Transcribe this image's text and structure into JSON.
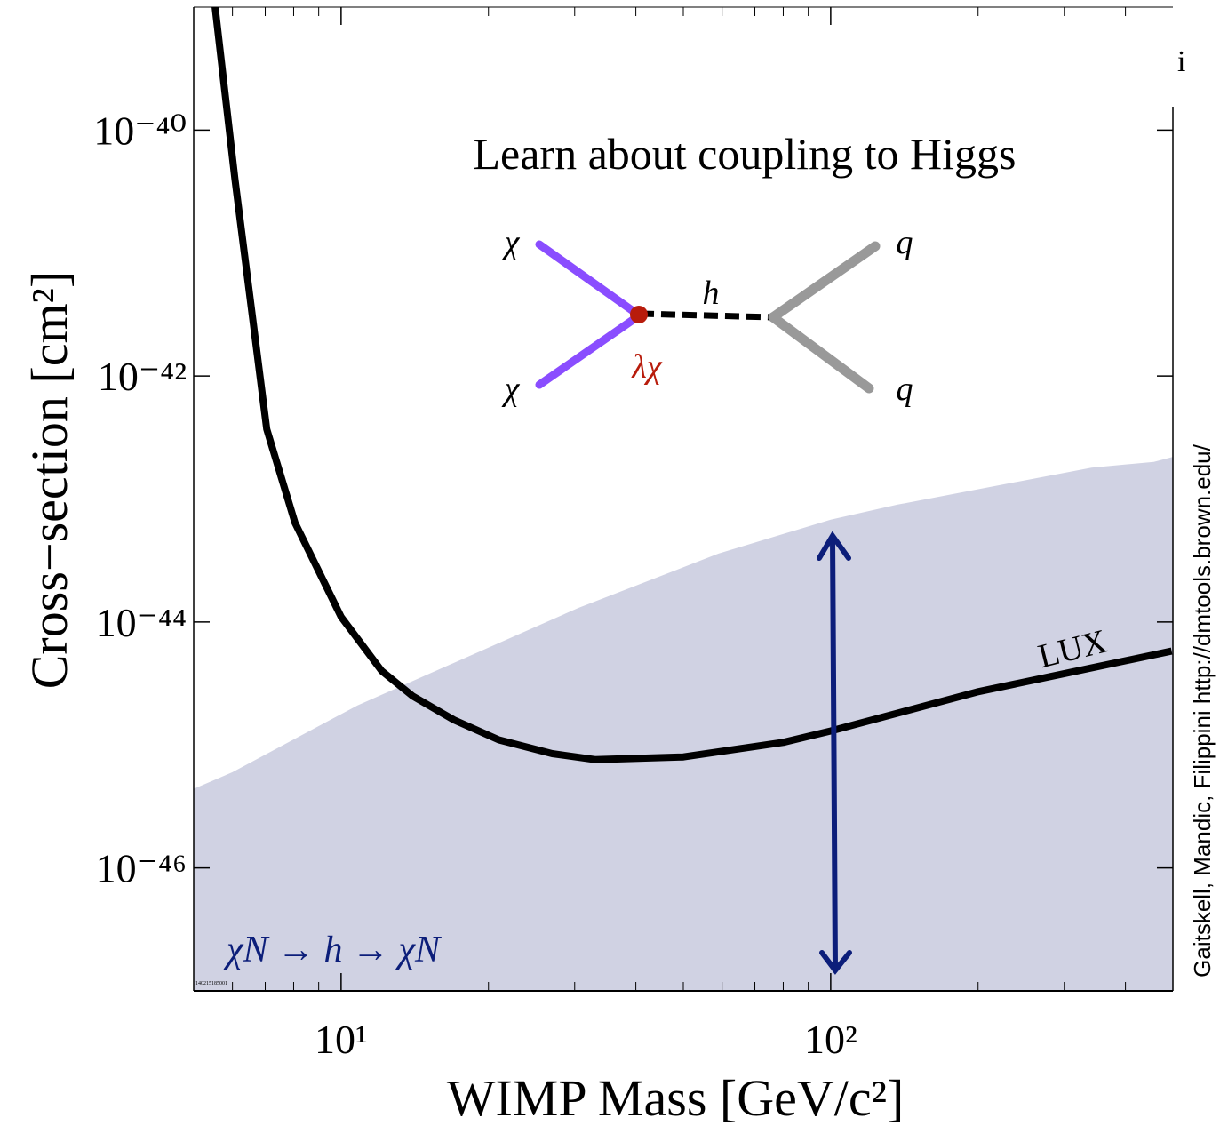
{
  "chart_data": {
    "type": "line",
    "xlabel": "WIMP Mass [GeV/c²]",
    "ylabel": "Cross−section [cm²]",
    "xscale": "log",
    "yscale": "log",
    "xlim": [
      5,
      500
    ],
    "ylim": [
      1e-47,
      1e-39
    ],
    "xticks": [
      {
        "value": 10,
        "label": "10¹"
      },
      {
        "value": 100,
        "label": "10²"
      }
    ],
    "xticks_minor": [
      6,
      7,
      8,
      9,
      20,
      30,
      40,
      50,
      60,
      70,
      80,
      90,
      200,
      300,
      400
    ],
    "yticks": [
      {
        "value": 1e-40,
        "label": "10⁻⁴⁰"
      },
      {
        "value": 1e-42,
        "label": "10⁻⁴²"
      },
      {
        "value": 1e-44,
        "label": "10⁻⁴⁴"
      },
      {
        "value": 1e-46,
        "label": "10⁻⁴⁶"
      }
    ],
    "series": [
      {
        "name": "LUX",
        "color": "#000000",
        "x": [
          5.53,
          6.07,
          7.05,
          8.05,
          10,
          12.1,
          14,
          17,
          21,
          27,
          33,
          50,
          80,
          100,
          199,
          497
        ],
        "values": [
          1e-39,
          4e-41,
          3.7e-43,
          6.4e-44,
          1.1e-44,
          4e-45,
          2.5e-45,
          1.6e-45,
          1.1e-45,
          8.5e-46,
          7.6e-46,
          8e-46,
          1.05e-45,
          1.3e-45,
          2.7e-45,
          5.8e-45
        ]
      },
      {
        "color": "#d0d2e3",
        "fill": true,
        "x": [
          5,
          6,
          10.8,
          30.5,
          59,
          100,
          137,
          341,
          457,
          500
        ],
        "values": [
          4.4e-46,
          6e-46,
          2.1e-45,
          1.3e-44,
          3.6e-44,
          6.8e-44,
          9e-44,
          1.8e-43,
          2e-43,
          2.2e-43
        ]
      }
    ],
    "annotations": {
      "headline": "Learn about coupling to Higgs",
      "process": "χN → h → χN",
      "curve_label": "LUX",
      "chi_top": "χ",
      "chi_bottom": "χ",
      "mediator": "h",
      "q_top": "q",
      "q_bottom": "q",
      "coupling": "λχ",
      "credit": "Gaitskell, Mandic, Filippini http://dmtools.brown.edu/",
      "stamp": "140215185001",
      "corner": "i"
    }
  }
}
